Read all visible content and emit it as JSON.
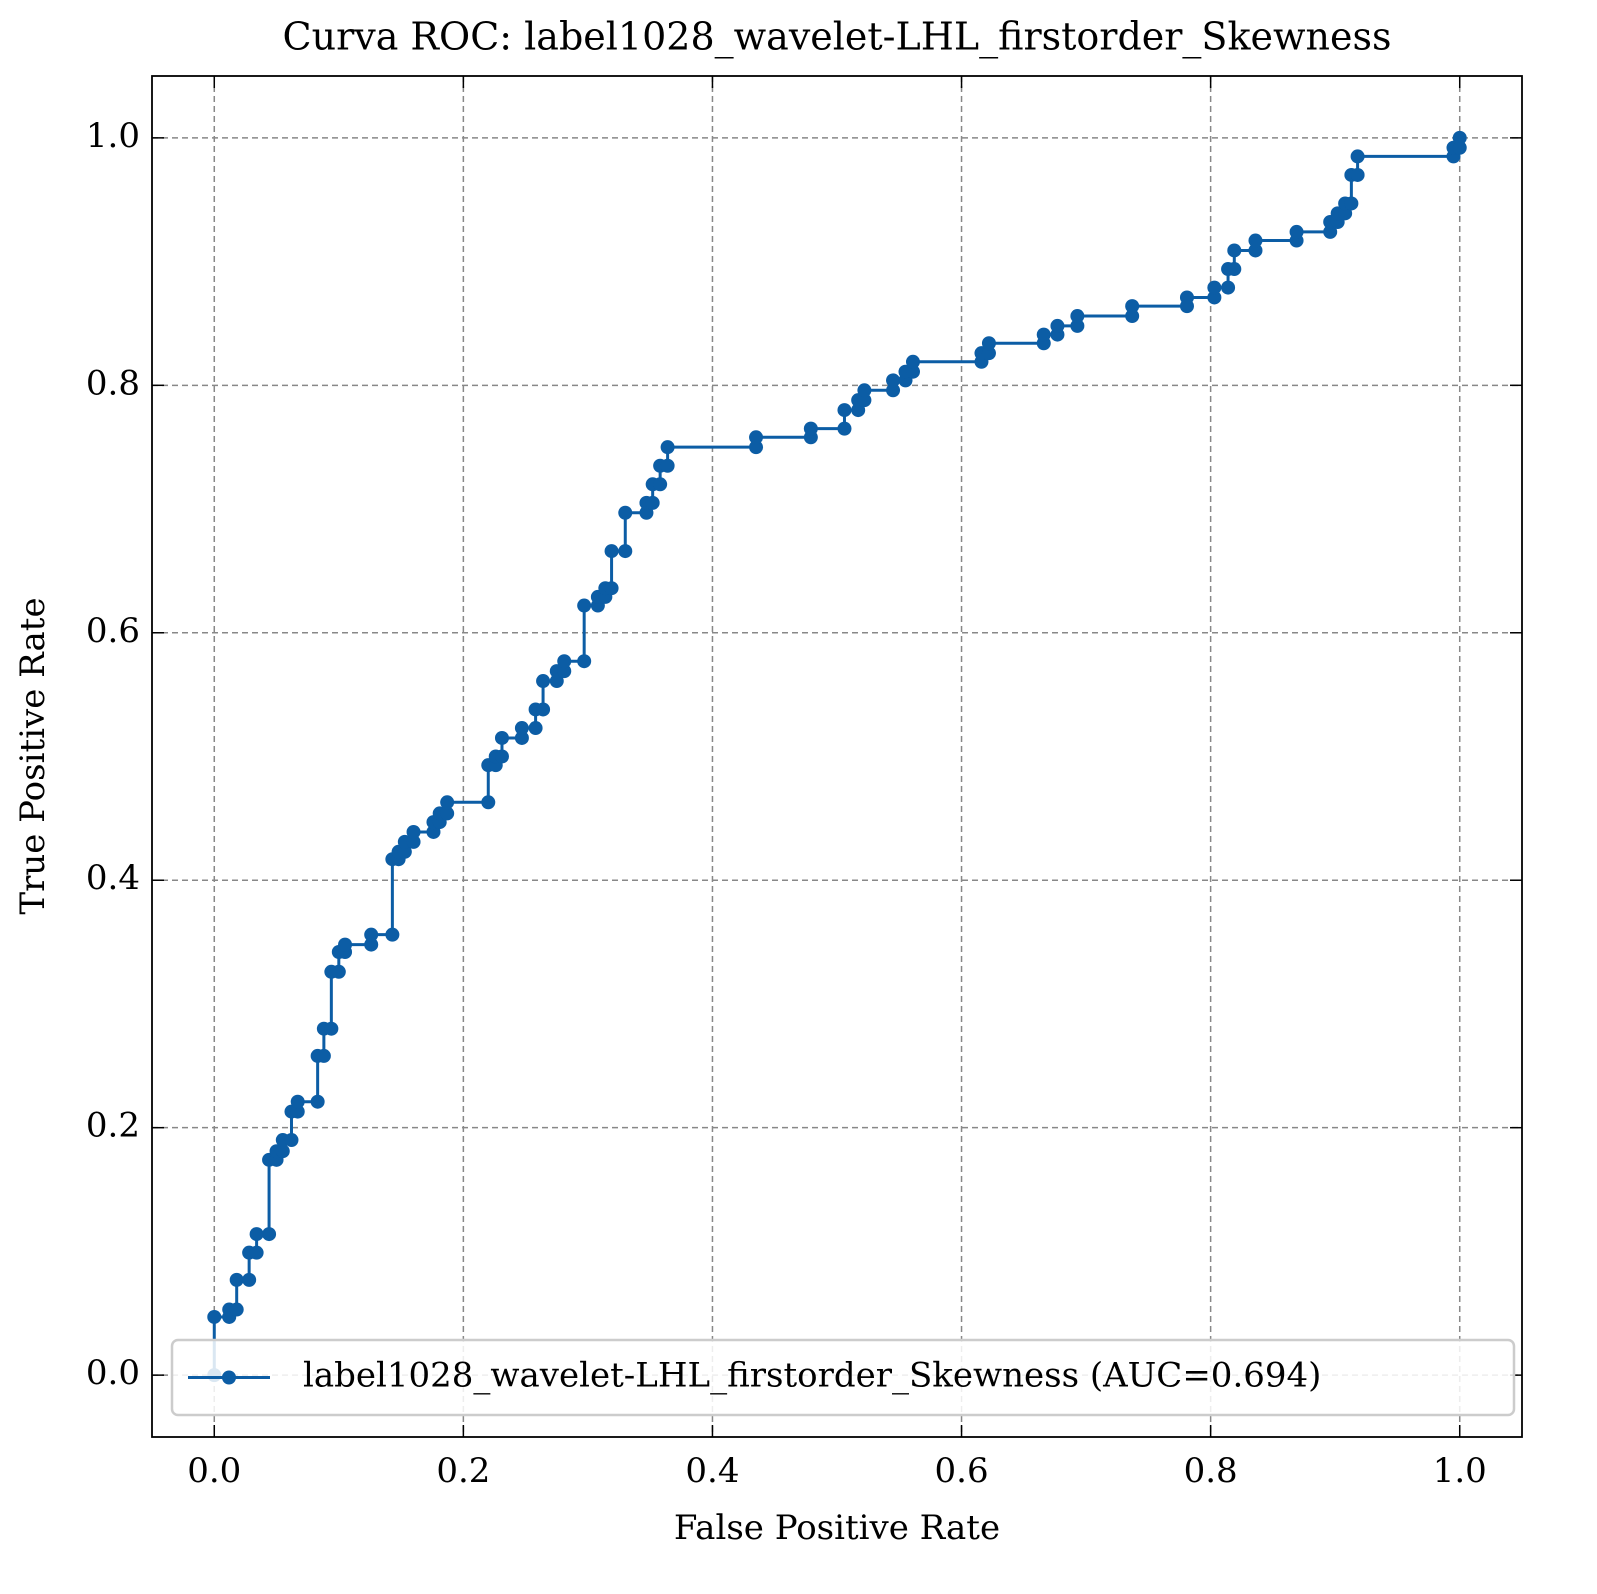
{
  "chart_data": {
    "type": "line",
    "title": "Curva ROC: label1028_wavelet-LHL_firstorder_Skewness",
    "xlabel": "False Positive Rate",
    "ylabel": "True Positive Rate",
    "xlim": [
      -0.05,
      1.05
    ],
    "ylim": [
      -0.05,
      1.05
    ],
    "xticks": [
      {
        "value": 0,
        "label": "0.0"
      },
      0.2,
      0.4,
      0.6,
      0.8,
      {
        "value": 1,
        "label": "1.0"
      }
    ],
    "yticks": [
      {
        "value": 0,
        "label": "0.0"
      },
      0.2,
      0.4,
      0.6,
      0.8,
      {
        "value": 1,
        "label": "1.0"
      }
    ],
    "grid": true,
    "legend": "lower right",
    "x": [
      0,
      0,
      0.012,
      0.012,
      0.018,
      0.018,
      0.028,
      0.028,
      0.034,
      0.034,
      0.044,
      0.044,
      0.05,
      0.05,
      0.055,
      0.055,
      0.062,
      0.062,
      0.067,
      0.067,
      0.083,
      0.083,
      0.088,
      0.088,
      0.094,
      0.094,
      0.1,
      0.1,
      0.105,
      0.105,
      0.126,
      0.126,
      0.143,
      0.143,
      0.148,
      0.148,
      0.153,
      0.153,
      0.16,
      0.16,
      0.176,
      0.176,
      0.181,
      0.181,
      0.187,
      0.187,
      0.22,
      0.22,
      0.226,
      0.226,
      0.231,
      0.231,
      0.247,
      0.247,
      0.258,
      0.258,
      0.264,
      0.264,
      0.275,
      0.275,
      0.281,
      0.281,
      0.297,
      0.297,
      0.308,
      0.308,
      0.314,
      0.314,
      0.319,
      0.319,
      0.33,
      0.33,
      0.347,
      0.347,
      0.352,
      0.352,
      0.358,
      0.358,
      0.364,
      0.364,
      0.435,
      0.435,
      0.479,
      0.479,
      0.506,
      0.506,
      0.517,
      0.517,
      0.522,
      0.522,
      0.545,
      0.545,
      0.555,
      0.555,
      0.561,
      0.561,
      0.616,
      0.616,
      0.622,
      0.622,
      0.666,
      0.666,
      0.677,
      0.677,
      0.693,
      0.693,
      0.737,
      0.737,
      0.781,
      0.781,
      0.803,
      0.803,
      0.814,
      0.814,
      0.819,
      0.819,
      0.836,
      0.836,
      0.869,
      0.869,
      0.896,
      0.896,
      0.902,
      0.902,
      0.908,
      0.908,
      0.913,
      0.913,
      0.918,
      0.918,
      0.995,
      0.995,
      1,
      1
    ],
    "series": [
      {
        "name": "label1028_wavelet-LHL_firstorder_Skewness (AUC=0.694)",
        "color": "#0c5da5",
        "values": [
          0,
          0.047,
          0.047,
          0.053,
          0.053,
          0.077,
          0.077,
          0.099,
          0.099,
          0.114,
          0.114,
          0.174,
          0.174,
          0.181,
          0.181,
          0.19,
          0.19,
          0.213,
          0.213,
          0.221,
          0.221,
          0.258,
          0.258,
          0.28,
          0.28,
          0.326,
          0.326,
          0.342,
          0.342,
          0.348,
          0.348,
          0.356,
          0.356,
          0.417,
          0.417,
          0.423,
          0.423,
          0.431,
          0.431,
          0.439,
          0.439,
          0.447,
          0.447,
          0.454,
          0.454,
          0.463,
          0.463,
          0.493,
          0.493,
          0.5,
          0.5,
          0.515,
          0.515,
          0.523,
          0.523,
          0.538,
          0.538,
          0.561,
          0.561,
          0.569,
          0.569,
          0.577,
          0.577,
          0.622,
          0.622,
          0.629,
          0.629,
          0.636,
          0.636,
          0.666,
          0.666,
          0.697,
          0.697,
          0.705,
          0.705,
          0.72,
          0.72,
          0.735,
          0.735,
          0.75,
          0.75,
          0.758,
          0.758,
          0.765,
          0.765,
          0.78,
          0.78,
          0.788,
          0.788,
          0.796,
          0.796,
          0.804,
          0.804,
          0.811,
          0.811,
          0.819,
          0.819,
          0.826,
          0.826,
          0.834,
          0.834,
          0.841,
          0.841,
          0.848,
          0.848,
          0.856,
          0.856,
          0.864,
          0.864,
          0.871,
          0.871,
          0.879,
          0.879,
          0.894,
          0.894,
          0.909,
          0.909,
          0.917,
          0.917,
          0.924,
          0.924,
          0.932,
          0.932,
          0.939,
          0.939,
          0.947,
          0.947,
          0.97,
          0.97,
          0.985,
          0.985,
          0.992,
          0.992,
          1
        ]
      }
    ]
  }
}
